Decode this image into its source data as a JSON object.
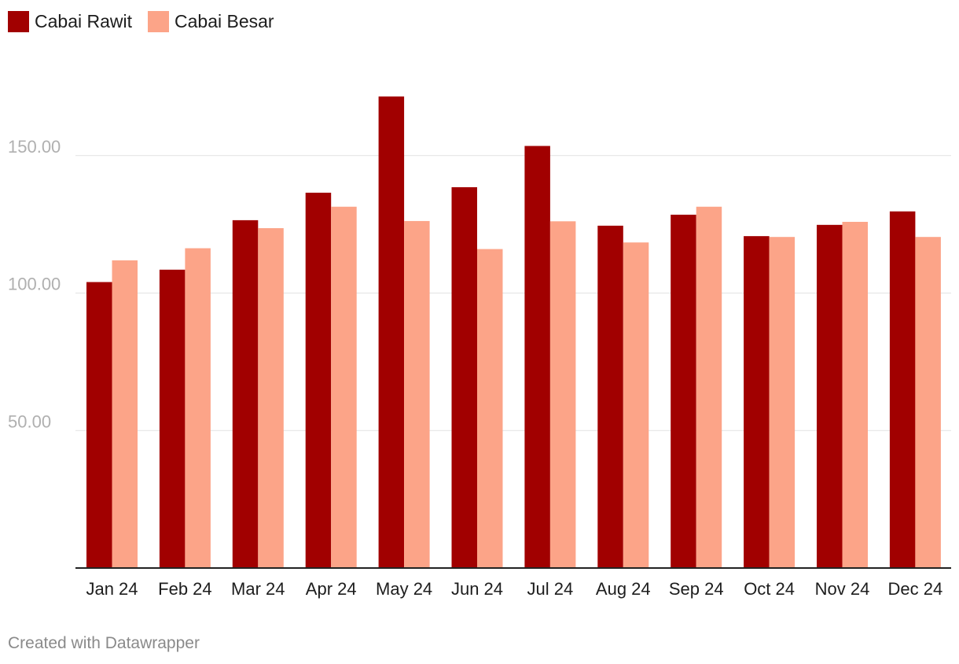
{
  "legend": [
    {
      "label": "Cabai Rawit",
      "color": "#a10000"
    },
    {
      "label": "Cabai Besar",
      "color": "#fca488"
    }
  ],
  "footer": {
    "credit": "Created with Datawrapper"
  },
  "chart_data": {
    "type": "bar",
    "categories": [
      "Jan 24",
      "Feb 24",
      "Mar 24",
      "Apr 24",
      "May 24",
      "Jun 24",
      "Jul 24",
      "Aug 24",
      "Sep 24",
      "Oct 24",
      "Nov 24",
      "Dec 24"
    ],
    "series": [
      {
        "name": "Cabai Rawit",
        "color": "#a10000",
        "values": [
          104,
          108.5,
          126.5,
          136.5,
          171.5,
          138.5,
          153.5,
          124.5,
          128.5,
          120.7,
          124.8,
          129.7
        ]
      },
      {
        "name": "Cabai Besar",
        "color": "#fca488",
        "values": [
          111.9,
          116.3,
          123.6,
          131.4,
          126.2,
          116,
          126.1,
          118.4,
          131.4,
          120.4,
          125.9,
          120.4
        ]
      }
    ],
    "yticks": [
      50,
      100,
      150
    ],
    "ytick_labels": [
      "50.00",
      "100.00",
      "150.00"
    ],
    "ylim": [
      0,
      185
    ],
    "grid": true,
    "legend_position": "top-left"
  }
}
